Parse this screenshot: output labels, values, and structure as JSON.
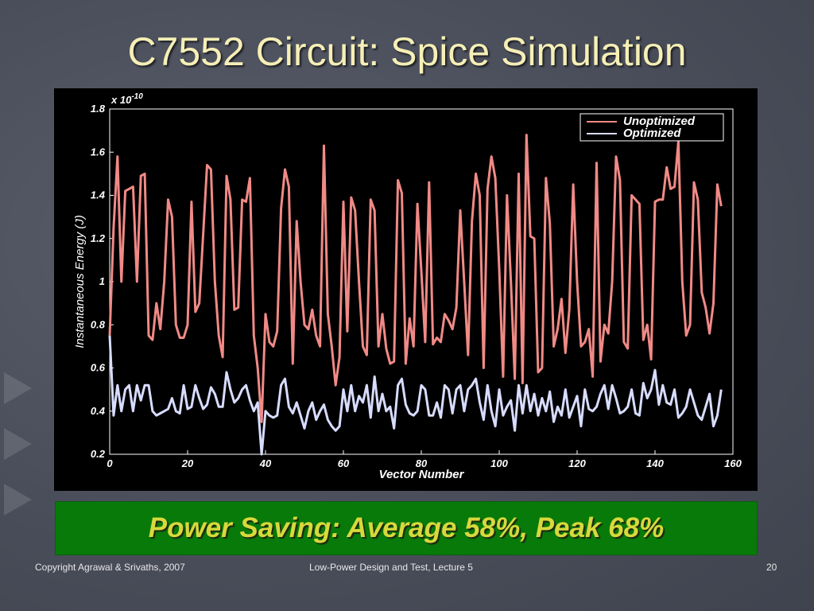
{
  "slide": {
    "title": "C7552 Circuit: Spice Simulation",
    "callout": "Power Saving: Average 58%, Peak 68%",
    "footer_left": "Copyright Agrawal & Srivaths, 2007",
    "footer_center": "Low-Power Design and Test, Lecture 5",
    "footer_right": "20"
  },
  "colors": {
    "unoptimized": "#f08a86",
    "optimized": "#d8dcff",
    "title": "#f6efb6",
    "callout_bg": "#077a0a",
    "callout_text": "#d7d93c"
  },
  "chart_data": {
    "type": "line",
    "title": "",
    "xlabel": "Vector Number",
    "ylabel": "Instantaneous Energy (J)",
    "y_multiplier": "x 10",
    "y_multiplier_exp": "-10",
    "xlim": [
      0,
      160
    ],
    "ylim": [
      0.2,
      1.8
    ],
    "xticks": [
      0,
      20,
      40,
      60,
      80,
      100,
      120,
      140,
      160
    ],
    "yticks": [
      0.2,
      0.4,
      0.6,
      0.8,
      1,
      1.2,
      1.4,
      1.6,
      1.8
    ],
    "legend_position": "top-right",
    "x": [
      0,
      1,
      2,
      3,
      4,
      5,
      6,
      7,
      8,
      9,
      10,
      11,
      12,
      13,
      14,
      15,
      16,
      17,
      18,
      19,
      20,
      21,
      22,
      23,
      24,
      25,
      26,
      27,
      28,
      29,
      30,
      31,
      32,
      33,
      34,
      35,
      36,
      37,
      38,
      39,
      40,
      41,
      42,
      43,
      44,
      45,
      46,
      47,
      48,
      49,
      50,
      51,
      52,
      53,
      54,
      55,
      56,
      57,
      58,
      59,
      60,
      61,
      62,
      63,
      64,
      65,
      66,
      67,
      68,
      69,
      70,
      71,
      72,
      73,
      74,
      75,
      76,
      77,
      78,
      79,
      80,
      81,
      82,
      83,
      84,
      85,
      86,
      87,
      88,
      89,
      90,
      91,
      92,
      93,
      94,
      95,
      96,
      97,
      98,
      99,
      100,
      101,
      102,
      103,
      104,
      105,
      106,
      107,
      108,
      109,
      110,
      111,
      112,
      113,
      114,
      115,
      116,
      117,
      118,
      119,
      120,
      121,
      122,
      123,
      124,
      125,
      126,
      127,
      128,
      129,
      130,
      131,
      132,
      133,
      134,
      135,
      136,
      137,
      138,
      139,
      140,
      141,
      142,
      143,
      144,
      145,
      146,
      147,
      148,
      149,
      150,
      151,
      152,
      153,
      154,
      155,
      156,
      157
    ],
    "series": [
      {
        "name": "Unoptimized",
        "values": [
          0.75,
          1.25,
          1.58,
          1.0,
          1.42,
          1.43,
          1.44,
          1.0,
          1.49,
          1.5,
          0.75,
          0.73,
          0.9,
          0.78,
          1.0,
          1.38,
          1.3,
          0.8,
          0.74,
          0.74,
          0.8,
          1.37,
          0.86,
          0.9,
          1.22,
          1.54,
          1.52,
          1.0,
          0.75,
          0.65,
          1.49,
          1.38,
          0.87,
          0.88,
          1.38,
          1.37,
          1.48,
          0.75,
          0.6,
          0.35,
          0.85,
          0.72,
          0.7,
          0.77,
          1.34,
          1.52,
          1.44,
          0.62,
          1.28,
          1.0,
          0.8,
          0.78,
          0.87,
          0.75,
          0.7,
          1.63,
          0.85,
          0.7,
          0.52,
          0.65,
          1.37,
          0.77,
          1.39,
          1.33,
          1.0,
          0.7,
          0.66,
          1.38,
          1.33,
          0.7,
          0.85,
          0.69,
          0.62,
          0.63,
          1.47,
          1.41,
          0.62,
          0.83,
          0.7,
          1.36,
          1.05,
          0.72,
          1.46,
          0.71,
          0.74,
          0.72,
          0.85,
          0.82,
          0.78,
          0.88,
          1.33,
          1.0,
          0.66,
          1.28,
          1.5,
          1.4,
          0.6,
          1.43,
          1.58,
          1.48,
          1.06,
          0.56,
          1.4,
          1.0,
          0.55,
          1.5,
          0.53,
          1.68,
          1.21,
          1.2,
          0.58,
          0.6,
          1.48,
          1.27,
          0.7,
          0.78,
          0.92,
          0.67,
          0.87,
          1.45,
          1.0,
          0.7,
          0.72,
          0.78,
          0.56,
          1.55,
          0.63,
          0.8,
          0.76,
          1.0,
          1.58,
          1.47,
          0.72,
          0.69,
          1.4,
          1.38,
          1.36,
          0.73,
          0.8,
          0.64,
          1.37,
          1.38,
          1.38,
          1.53,
          1.43,
          1.44,
          1.65,
          1.0,
          0.75,
          0.8,
          1.46,
          1.38,
          0.95,
          0.88,
          0.76,
          0.9,
          1.45,
          1.35
        ],
        "color": "#f08a86"
      },
      {
        "name": "Optimized",
        "values": [
          0.75,
          0.38,
          0.52,
          0.4,
          0.5,
          0.52,
          0.4,
          0.52,
          0.45,
          0.52,
          0.52,
          0.4,
          0.38,
          0.39,
          0.4,
          0.41,
          0.46,
          0.4,
          0.39,
          0.52,
          0.41,
          0.42,
          0.52,
          0.46,
          0.41,
          0.43,
          0.51,
          0.48,
          0.42,
          0.42,
          0.58,
          0.5,
          0.44,
          0.46,
          0.5,
          0.52,
          0.45,
          0.4,
          0.44,
          0.2,
          0.4,
          0.38,
          0.37,
          0.38,
          0.52,
          0.55,
          0.42,
          0.39,
          0.44,
          0.38,
          0.32,
          0.4,
          0.44,
          0.36,
          0.4,
          0.43,
          0.36,
          0.33,
          0.31,
          0.33,
          0.5,
          0.4,
          0.52,
          0.4,
          0.47,
          0.44,
          0.52,
          0.37,
          0.56,
          0.4,
          0.48,
          0.4,
          0.42,
          0.32,
          0.52,
          0.55,
          0.43,
          0.39,
          0.38,
          0.4,
          0.52,
          0.5,
          0.38,
          0.38,
          0.44,
          0.37,
          0.52,
          0.5,
          0.39,
          0.5,
          0.52,
          0.4,
          0.5,
          0.52,
          0.55,
          0.44,
          0.36,
          0.52,
          0.4,
          0.33,
          0.5,
          0.38,
          0.42,
          0.45,
          0.31,
          0.52,
          0.39,
          0.52,
          0.4,
          0.48,
          0.38,
          0.46,
          0.4,
          0.49,
          0.35,
          0.42,
          0.38,
          0.5,
          0.37,
          0.42,
          0.47,
          0.33,
          0.5,
          0.41,
          0.4,
          0.42,
          0.48,
          0.52,
          0.41,
          0.52,
          0.46,
          0.39,
          0.4,
          0.42,
          0.5,
          0.39,
          0.38,
          0.53,
          0.46,
          0.5,
          0.59,
          0.43,
          0.52,
          0.44,
          0.43,
          0.5,
          0.37,
          0.39,
          0.42,
          0.5,
          0.44,
          0.38,
          0.36,
          0.42,
          0.48,
          0.33,
          0.38,
          0.5
        ],
        "color": "#d8dcff"
      }
    ]
  }
}
